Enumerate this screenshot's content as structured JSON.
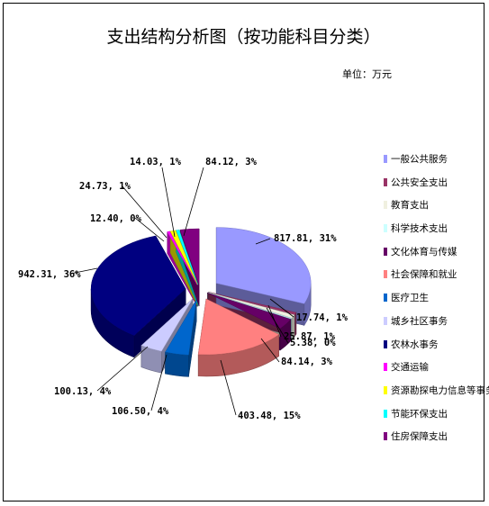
{
  "chart_data": {
    "type": "pie",
    "title": "支出结构分析图（按功能科目分类）",
    "unit_label": "单位：万元",
    "legend_position": "right",
    "slices": [
      {
        "name": "一般公共服务",
        "value": 817.81,
        "percent": "31%",
        "label": "817.81, 31%",
        "color": "#9999ff"
      },
      {
        "name": "公共安全支出",
        "value": 17.74,
        "percent": "1%",
        "label": "17.74, 1%",
        "color": "#993366"
      },
      {
        "name": "教育支出",
        "value": 25.87,
        "percent": "1%",
        "label": "25.87, 1%",
        "color": "#f0f0e0"
      },
      {
        "name": "科学技术支出",
        "value": 5.38,
        "percent": "0%",
        "label": "5.38, 0%",
        "color": "#ccffff"
      },
      {
        "name": "文化体育与传媒",
        "value": 84.14,
        "percent": "3%",
        "label": "84.14, 3%",
        "color": "#660066"
      },
      {
        "name": "社会保障和就业",
        "value": 403.48,
        "percent": "15%",
        "label": "403.48, 15%",
        "color": "#ff8080"
      },
      {
        "name": "医疗卫生",
        "value": 106.5,
        "percent": "4%",
        "label": "106.50, 4%",
        "color": "#0066cc"
      },
      {
        "name": "城乡社区事务",
        "value": 100.13,
        "percent": "4%",
        "label": "100.13, 4%",
        "color": "#ccccff"
      },
      {
        "name": "农林水事务",
        "value": 942.31,
        "percent": "36%",
        "label": "942.31, 36%",
        "color": "#000080"
      },
      {
        "name": "交通运输",
        "value": 12.4,
        "percent": "0%",
        "label": "12.40, 0%",
        "color": "#ff00ff"
      },
      {
        "name": "资源勘探电力信息等事务",
        "value": 24.73,
        "percent": "1%",
        "label": "24.73, 1%",
        "color": "#ffff00"
      },
      {
        "name": "节能环保支出",
        "value": 14.03,
        "percent": "1%",
        "label": "14.03, 1%",
        "color": "#00ffff"
      },
      {
        "name": "住房保障支出",
        "value": 84.12,
        "percent": "3%",
        "label": "84.12, 3%",
        "color": "#800080"
      }
    ]
  }
}
